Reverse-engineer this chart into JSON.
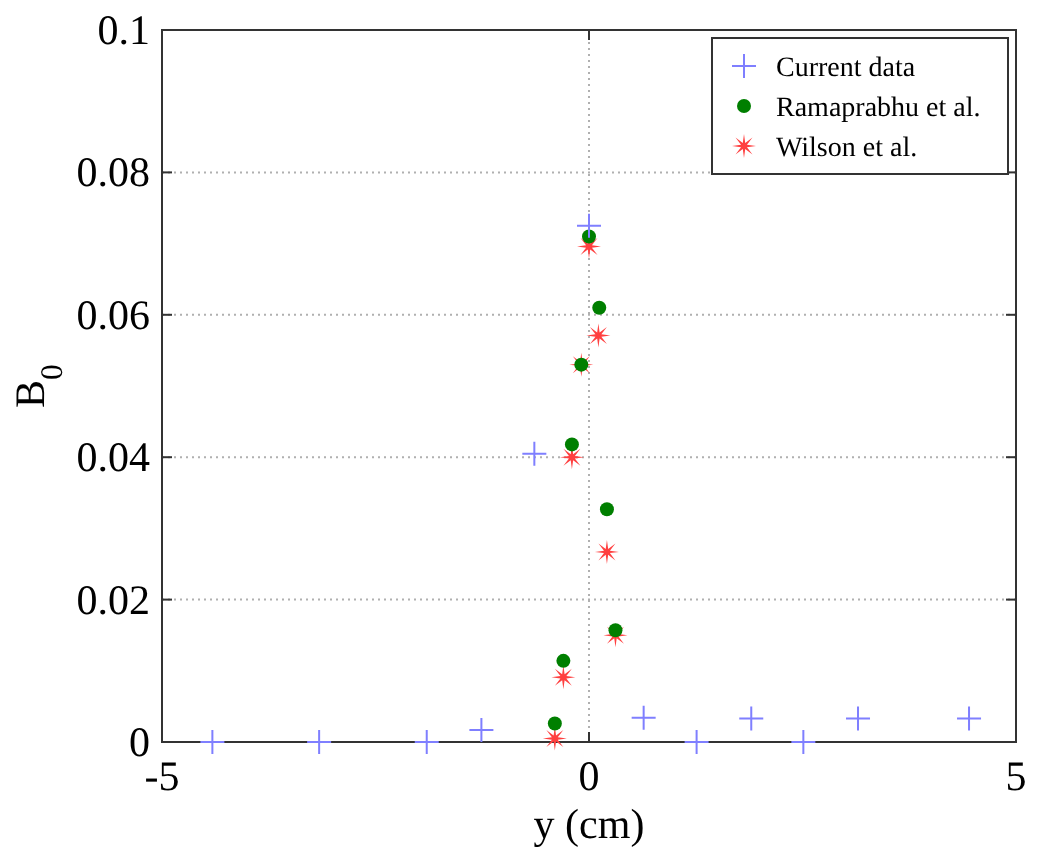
{
  "chart_data": {
    "type": "scatter",
    "xlabel": "y (cm)",
    "ylabel": "B$_{0}$",
    "xlim": [
      -5,
      5
    ],
    "ylim": [
      0,
      0.1
    ],
    "xticks": [
      -5,
      0,
      5
    ],
    "yticks": [
      0,
      0.02,
      0.04,
      0.06,
      0.08,
      0.1
    ],
    "grid": true,
    "legend": "top right",
    "series": [
      {
        "name": "Current data",
        "color": "#7f7fff",
        "marker": "cross",
        "x": [
          -4.41,
          -3.16,
          -1.9,
          -1.26,
          -0.64,
          0,
          0.64,
          1.26,
          1.9,
          2.51,
          3.15,
          4.45
        ],
        "values": [
          0,
          0,
          0,
          0.0017,
          0.0405,
          0.0725,
          0.0034,
          0,
          0.0033,
          0,
          0.0033,
          0.0033
        ]
      },
      {
        "name": "Ramaprabhu et al.",
        "color": "#007f00",
        "marker": "circle",
        "x": [
          0,
          0.12,
          -0.09,
          -0.2,
          0.21,
          0.31,
          -0.3,
          -0.4
        ],
        "values": [
          0.071,
          0.061,
          0.053,
          0.0418,
          0.0327,
          0.0157,
          0.0114,
          0.0026
        ]
      },
      {
        "name": "Wilson et al.",
        "color": "#ff4040",
        "marker": "star",
        "x": [
          0,
          0.11,
          -0.09,
          -0.2,
          0.21,
          0.31,
          -0.3,
          -0.4
        ],
        "values": [
          0.0696,
          0.0571,
          0.053,
          0.04,
          0.0267,
          0.015,
          0.0091,
          0.0005
        ]
      }
    ]
  }
}
